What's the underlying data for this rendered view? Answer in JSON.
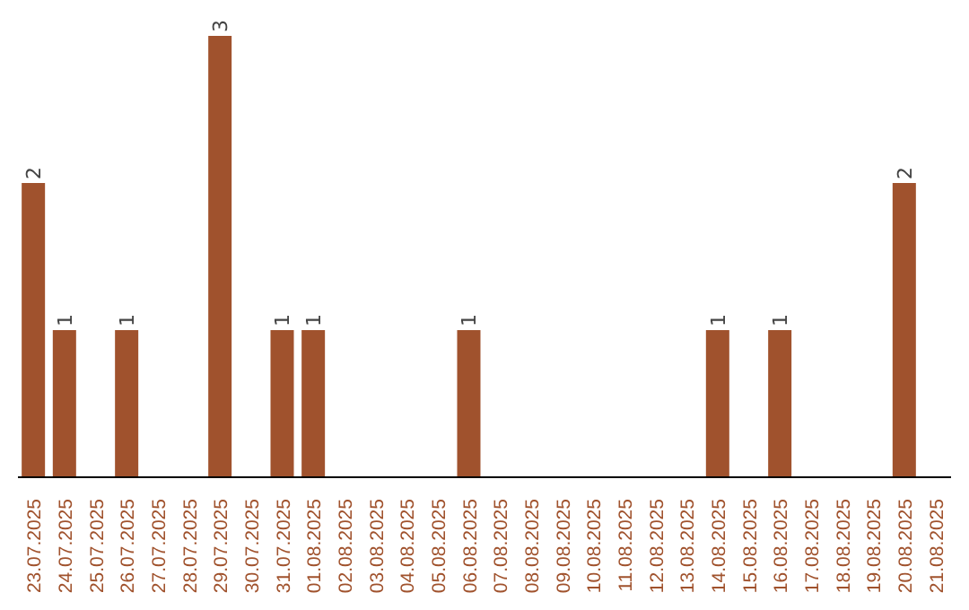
{
  "chart_data": {
    "type": "bar",
    "categories": [
      "23.07.2025",
      "24.07.2025",
      "25.07.2025",
      "26.07.2025",
      "27.07.2025",
      "28.07.2025",
      "29.07.2025",
      "30.07.2025",
      "31.07.2025",
      "01.08.2025",
      "02.08.2025",
      "03.08.2025",
      "04.08.2025",
      "05.08.2025",
      "06.08.2025",
      "07.08.2025",
      "08.08.2025",
      "09.08.2025",
      "10.08.2025",
      "11.08.2025",
      "12.08.2025",
      "13.08.2025",
      "14.08.2025",
      "15.08.2025",
      "16.08.2025",
      "17.08.2025",
      "18.08.2025",
      "19.08.2025",
      "20.08.2025",
      "21.08.2025"
    ],
    "values": [
      2,
      1,
      0,
      1,
      0,
      0,
      3,
      0,
      1,
      1,
      0,
      0,
      0,
      0,
      1,
      0,
      0,
      0,
      0,
      0,
      0,
      0,
      1,
      0,
      1,
      0,
      0,
      0,
      2,
      0
    ],
    "value_labels": [
      "2",
      "1",
      null,
      "1",
      null,
      null,
      "3",
      null,
      "1",
      "1",
      null,
      null,
      null,
      null,
      "1",
      null,
      null,
      null,
      null,
      null,
      null,
      null,
      "1",
      null,
      "1",
      null,
      null,
      null,
      "2",
      null
    ],
    "color": "#a0522d",
    "grid": false,
    "tick_labels": "x"
  }
}
